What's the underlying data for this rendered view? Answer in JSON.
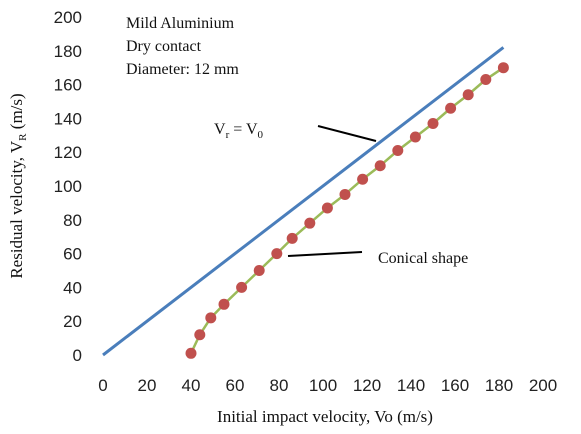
{
  "chart_data": {
    "type": "line",
    "title": "",
    "xlabel": "Initial impact velocity, Vo (m/s)",
    "ylabel": "Residual velocity, V",
    "ylabel_sub": "R",
    "ylabel_unit": " (m/s)",
    "xlim": [
      0,
      200
    ],
    "ylim": [
      0,
      200
    ],
    "xticks": [
      0,
      20,
      40,
      60,
      80,
      100,
      120,
      140,
      160,
      180,
      200
    ],
    "yticks": [
      0,
      20,
      40,
      60,
      80,
      100,
      120,
      140,
      160,
      180,
      200
    ],
    "grid": false,
    "info_lines": [
      "Mild Aluminium",
      "Dry contact",
      "Diameter: 12 mm"
    ],
    "series": [
      {
        "name": "Vr = V0",
        "label_parts": [
          "V",
          "r",
          " = V",
          "0"
        ],
        "color": "#4a7ebb",
        "marker": "none",
        "x": [
          0,
          182
        ],
        "y": [
          0,
          182
        ]
      },
      {
        "name": "Conical shape",
        "color": "#9bbb59",
        "marker_color": "#c0504d",
        "marker": "circle",
        "x": [
          40,
          44,
          49,
          55,
          63,
          71,
          79,
          86,
          94,
          102,
          110,
          118,
          126,
          134,
          142,
          150,
          158,
          166,
          174,
          182
        ],
        "y": [
          1,
          12,
          22,
          30,
          40,
          50,
          60,
          69,
          78,
          87,
          95,
          104,
          112,
          121,
          129,
          137,
          146,
          154,
          163,
          170
        ]
      }
    ]
  }
}
